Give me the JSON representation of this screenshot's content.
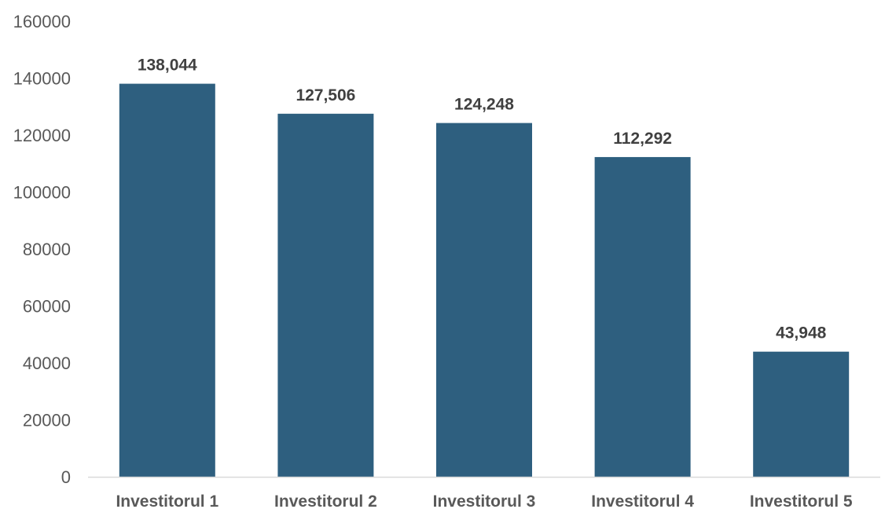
{
  "chart_data": {
    "type": "bar",
    "categories": [
      "Investitorul 1",
      "Investitorul 2",
      "Investitorul 3",
      "Investitorul 4",
      "Investitorul 5"
    ],
    "values": [
      138044,
      127506,
      124248,
      112292,
      43948
    ],
    "data_labels": [
      "138,044",
      "127,506",
      "124,248",
      "112,292",
      "43,948"
    ],
    "title": "",
    "xlabel": "",
    "ylabel": "",
    "ylim": [
      0,
      160000
    ],
    "yticks": [
      "0",
      "20000",
      "40000",
      "60000",
      "80000",
      "100000",
      "120000",
      "140000",
      "160000"
    ],
    "grid": false,
    "legend": "none",
    "bar_color": "#2E5F7F",
    "axis_color": "#D9D9D9"
  }
}
